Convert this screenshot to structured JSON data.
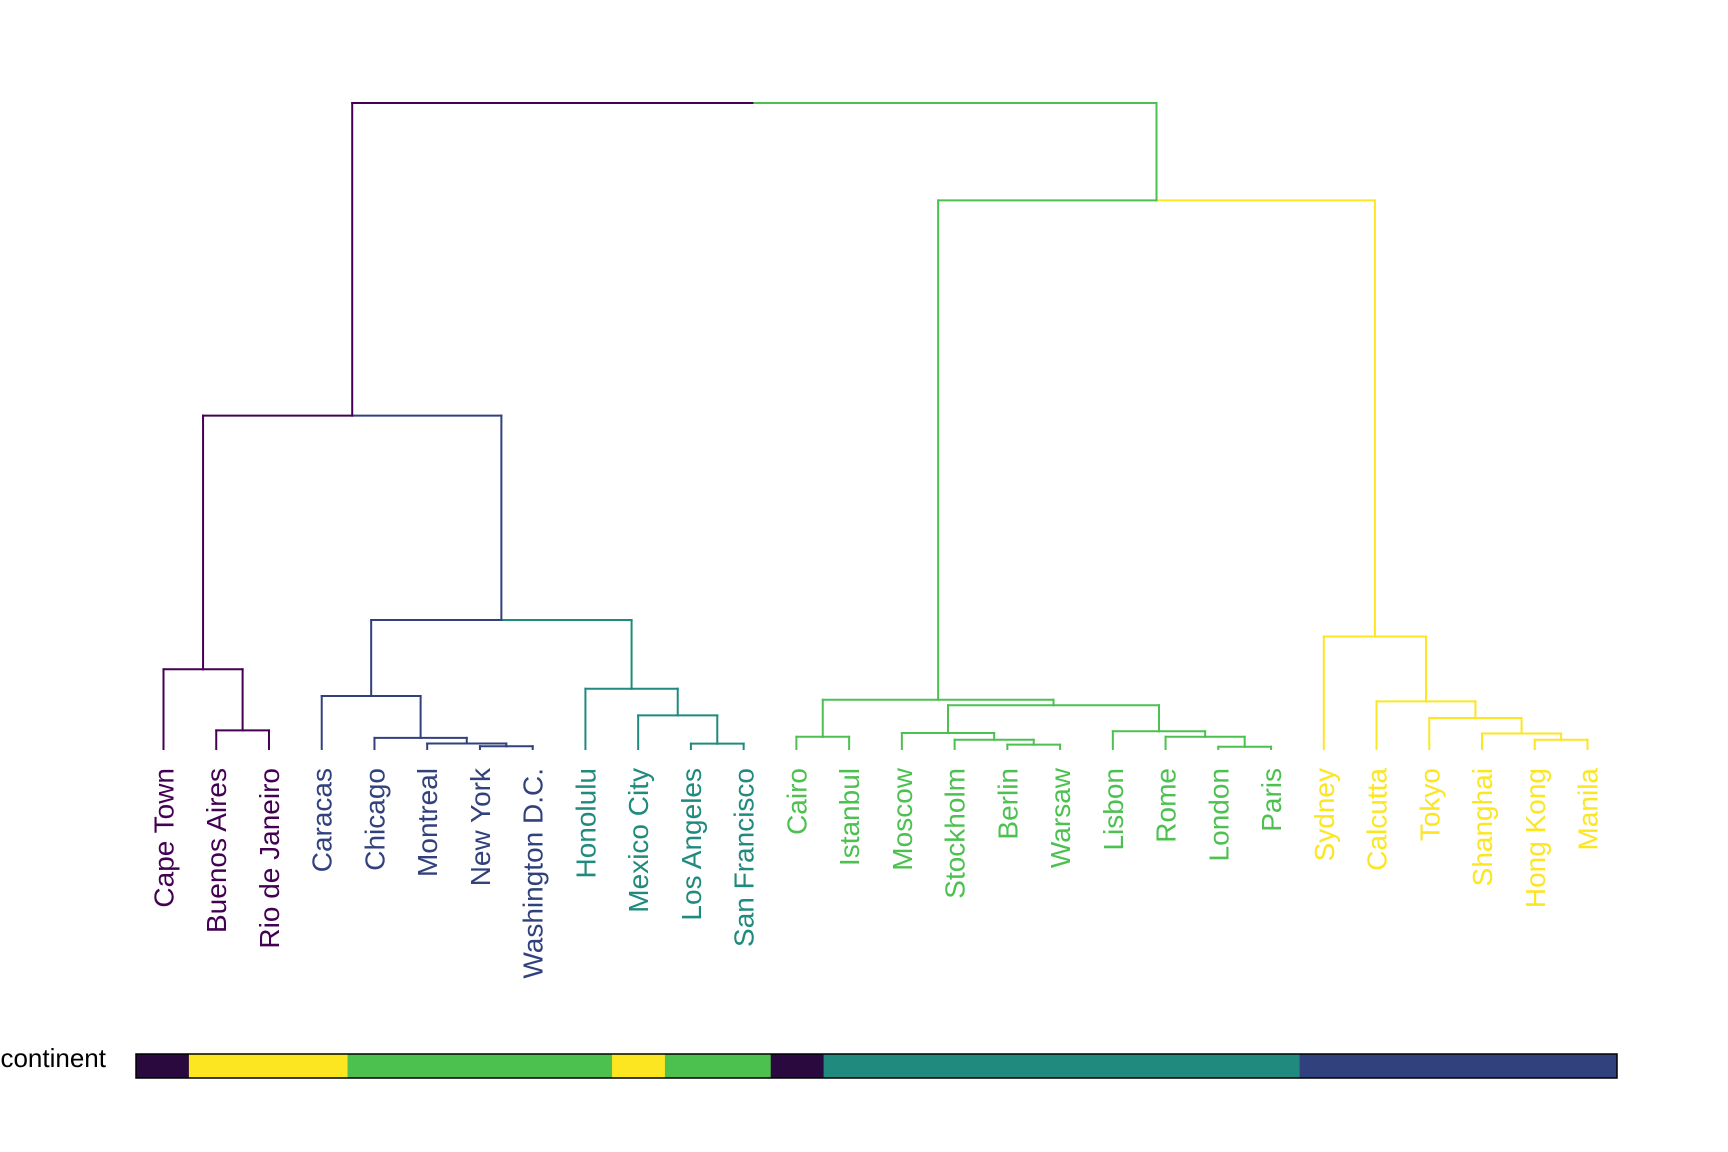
{
  "chart_data": {
    "type": "dendrogram",
    "colors": {
      "root": "#000000",
      "purple": "#440154",
      "navy": "#31417d",
      "teal": "#1f8a7d",
      "green": "#4cc150",
      "yellow": "#fce622"
    },
    "leaves": [
      {
        "label": "Cape Town",
        "color": "#440154"
      },
      {
        "label": "Buenos Aires",
        "color": "#440154"
      },
      {
        "label": "Rio de Janeiro",
        "color": "#440154"
      },
      {
        "label": "Caracas",
        "color": "#31417d"
      },
      {
        "label": "Chicago",
        "color": "#31417d"
      },
      {
        "label": "Montreal",
        "color": "#31417d"
      },
      {
        "label": "New York",
        "color": "#31417d"
      },
      {
        "label": "Washington D.C.",
        "color": "#31417d"
      },
      {
        "label": "Honolulu",
        "color": "#1f8a7d"
      },
      {
        "label": "Mexico City",
        "color": "#1f8a7d"
      },
      {
        "label": "Los Angeles",
        "color": "#1f8a7d"
      },
      {
        "label": "San Francisco",
        "color": "#1f8a7d"
      },
      {
        "label": "Cairo",
        "color": "#4cc150"
      },
      {
        "label": "Istanbul",
        "color": "#4cc150"
      },
      {
        "label": "Moscow",
        "color": "#4cc150"
      },
      {
        "label": "Stockholm",
        "color": "#4cc150"
      },
      {
        "label": "Berlin",
        "color": "#4cc150"
      },
      {
        "label": "Warsaw",
        "color": "#4cc150"
      },
      {
        "label": "Lisbon",
        "color": "#4cc150"
      },
      {
        "label": "Rome",
        "color": "#4cc150"
      },
      {
        "label": "London",
        "color": "#4cc150"
      },
      {
        "label": "Paris",
        "color": "#4cc150"
      },
      {
        "label": "Sydney",
        "color": "#fce622"
      },
      {
        "label": "Calcutta",
        "color": "#fce622"
      },
      {
        "label": "Tokyo",
        "color": "#fce622"
      },
      {
        "label": "Shanghai",
        "color": "#fce622"
      },
      {
        "label": "Hong Kong",
        "color": "#fce622"
      },
      {
        "label": "Manila",
        "color": "#fce622"
      }
    ],
    "merges": [
      {
        "id": "m_ny_wdc",
        "children": [
          "Washington D.C.",
          "New York"
        ],
        "height": 0.0025,
        "color": "#31417d"
      },
      {
        "id": "m_mtl",
        "children": [
          "m_ny_wdc",
          "Montreal"
        ],
        "height": 0.005,
        "color": "#31417d"
      },
      {
        "id": "m_chi",
        "children": [
          "Chicago",
          "m_mtl"
        ],
        "height": 0.01,
        "color": "#31417d"
      },
      {
        "id": "m_car",
        "children": [
          "Caracas",
          "m_chi"
        ],
        "height": 0.0478,
        "color": "#31417d"
      },
      {
        "id": "m_la_sf",
        "children": [
          "Los Angeles",
          "San Francisco"
        ],
        "height": 0.0048,
        "color": "#1f8a7d"
      },
      {
        "id": "m_mex",
        "children": [
          "Mexico City",
          "m_la_sf"
        ],
        "height": 0.0303,
        "color": "#1f8a7d"
      },
      {
        "id": "m_hon",
        "children": [
          "Honolulu",
          "m_mex"
        ],
        "height": 0.0544,
        "color": "#1f8a7d"
      },
      {
        "id": "m_americas",
        "children": [
          "m_car",
          "m_hon"
        ],
        "height": 0.1164,
        "color": "#31417d"
      },
      {
        "id": "m_bue_rio",
        "children": [
          "Buenos Aires",
          "Rio de Janeiro"
        ],
        "height": 0.0168,
        "color": "#440154"
      },
      {
        "id": "m_south",
        "children": [
          "Cape Town",
          "m_bue_rio"
        ],
        "height": 0.0719,
        "color": "#440154"
      },
      {
        "id": "m_left",
        "children": [
          "m_south",
          "m_americas"
        ],
        "height": 0.3007,
        "color": "#440154"
      },
      {
        "id": "m_cai_ist",
        "children": [
          "Cairo",
          "Istanbul"
        ],
        "height": 0.011,
        "color": "#4cc150"
      },
      {
        "id": "m_ber_war",
        "children": [
          "Berlin",
          "Warsaw"
        ],
        "height": 0.0039,
        "color": "#4cc150"
      },
      {
        "id": "m_sto",
        "children": [
          "Stockholm",
          "m_ber_war"
        ],
        "height": 0.0084,
        "color": "#4cc150"
      },
      {
        "id": "m_mos",
        "children": [
          "Moscow",
          "m_sto"
        ],
        "height": 0.0144,
        "color": "#4cc150"
      },
      {
        "id": "m_lon_par",
        "children": [
          "London",
          "Paris"
        ],
        "height": 0.002,
        "color": "#4cc150"
      },
      {
        "id": "m_rom",
        "children": [
          "Rome",
          "m_lon_par"
        ],
        "height": 0.011,
        "color": "#4cc150"
      },
      {
        "id": "m_lis",
        "children": [
          "Lisbon",
          "m_rom"
        ],
        "height": 0.016,
        "color": "#4cc150"
      },
      {
        "id": "m_eu",
        "children": [
          "m_mos",
          "m_lis"
        ],
        "height": 0.0395,
        "color": "#4cc150"
      },
      {
        "id": "m_eurasia",
        "children": [
          "m_cai_ist",
          "m_eu"
        ],
        "height": 0.0444,
        "color": "#4cc150"
      },
      {
        "id": "m_hk_man",
        "children": [
          "Hong Kong",
          "Manila"
        ],
        "height": 0.0084,
        "color": "#fce622"
      },
      {
        "id": "m_sha",
        "children": [
          "Shanghai",
          "m_hk_man"
        ],
        "height": 0.014,
        "color": "#fce622"
      },
      {
        "id": "m_tok",
        "children": [
          "Tokyo",
          "m_sha"
        ],
        "height": 0.028,
        "color": "#fce622"
      },
      {
        "id": "m_cal",
        "children": [
          "Calcutta",
          "m_tok"
        ],
        "height": 0.043,
        "color": "#fce622"
      },
      {
        "id": "m_syd",
        "children": [
          "Sydney",
          "m_cal"
        ],
        "height": 0.1015,
        "color": "#fce622"
      },
      {
        "id": "m_right",
        "children": [
          "m_eurasia",
          "m_syd"
        ],
        "height": 0.4949,
        "color": "#4cc150"
      },
      {
        "id": "m_root",
        "children": [
          "m_left",
          "m_right"
        ],
        "height": 0.5827,
        "color": "#000000"
      }
    ],
    "annotation": {
      "label": "continent",
      "segments": [
        {
          "color": "#2a0a3e",
          "count": 1
        },
        {
          "color": "#fce622",
          "count": 3
        },
        {
          "color": "#4cc150",
          "count": 5
        },
        {
          "color": "#fce622",
          "count": 1
        },
        {
          "color": "#4cc150",
          "count": 2
        },
        {
          "color": "#2a0a3e",
          "count": 1
        },
        {
          "color": "#1f8a7d",
          "count": 9
        },
        {
          "color": "#31417d",
          "count": 6
        }
      ]
    }
  }
}
